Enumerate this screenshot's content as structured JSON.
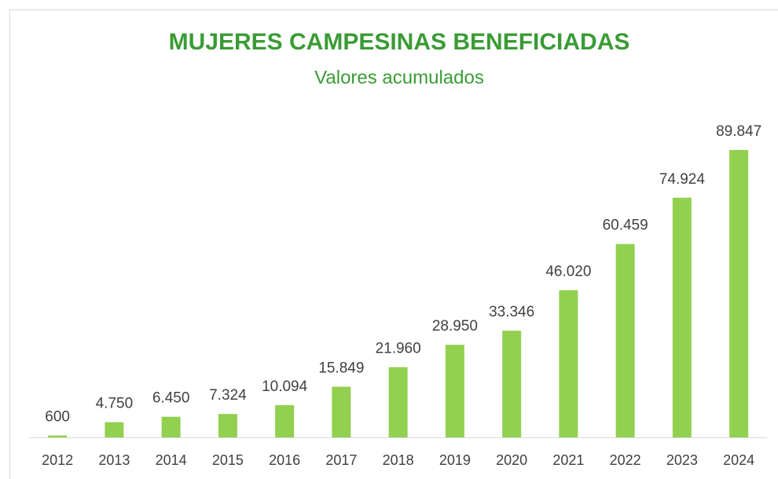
{
  "chart_data": {
    "type": "bar",
    "title": "MUJERES CAMPESINAS BENEFICIADAS",
    "subtitle": "Valores acumulados",
    "categories": [
      "2012",
      "2013",
      "2014",
      "2015",
      "2016",
      "2017",
      "2018",
      "2019",
      "2020",
      "2021",
      "2022",
      "2023",
      "2024"
    ],
    "values": [
      600,
      4750,
      6450,
      7324,
      10094,
      15849,
      21960,
      28950,
      33346,
      46020,
      60459,
      74924,
      89847
    ],
    "value_labels": [
      "600",
      "4.750",
      "6.450",
      "7.324",
      "10.094",
      "15.849",
      "21.960",
      "28.950",
      "33.346",
      "46.020",
      "60.459",
      "74.924",
      "89.847"
    ],
    "color": "#92d050"
  }
}
